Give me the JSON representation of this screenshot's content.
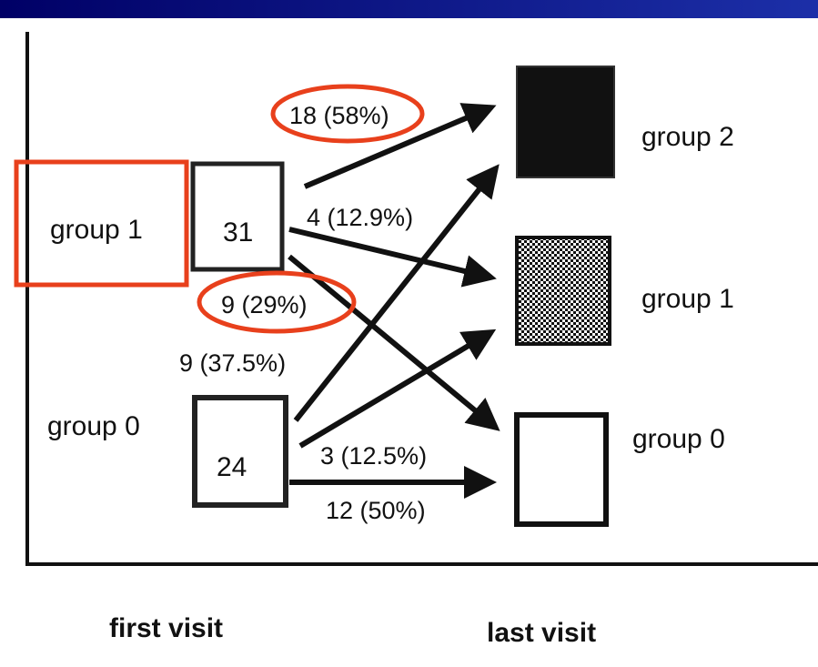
{
  "source_nodes": [
    {
      "label": "group 1",
      "count": "31"
    },
    {
      "label": "group 0",
      "count": "24"
    }
  ],
  "target_nodes": [
    {
      "label": "group 2"
    },
    {
      "label": "group 1"
    },
    {
      "label": "group 0"
    }
  ],
  "edges": [
    {
      "label": "18 (58%)"
    },
    {
      "label": "4 (12.9%)"
    },
    {
      "label": "9 (29%)"
    },
    {
      "label": "9 (37.5%)"
    },
    {
      "label": "3 (12.5%)"
    },
    {
      "label": "12 (50%)"
    }
  ],
  "axis_labels": {
    "left": "first visit",
    "right": "last visit"
  }
}
